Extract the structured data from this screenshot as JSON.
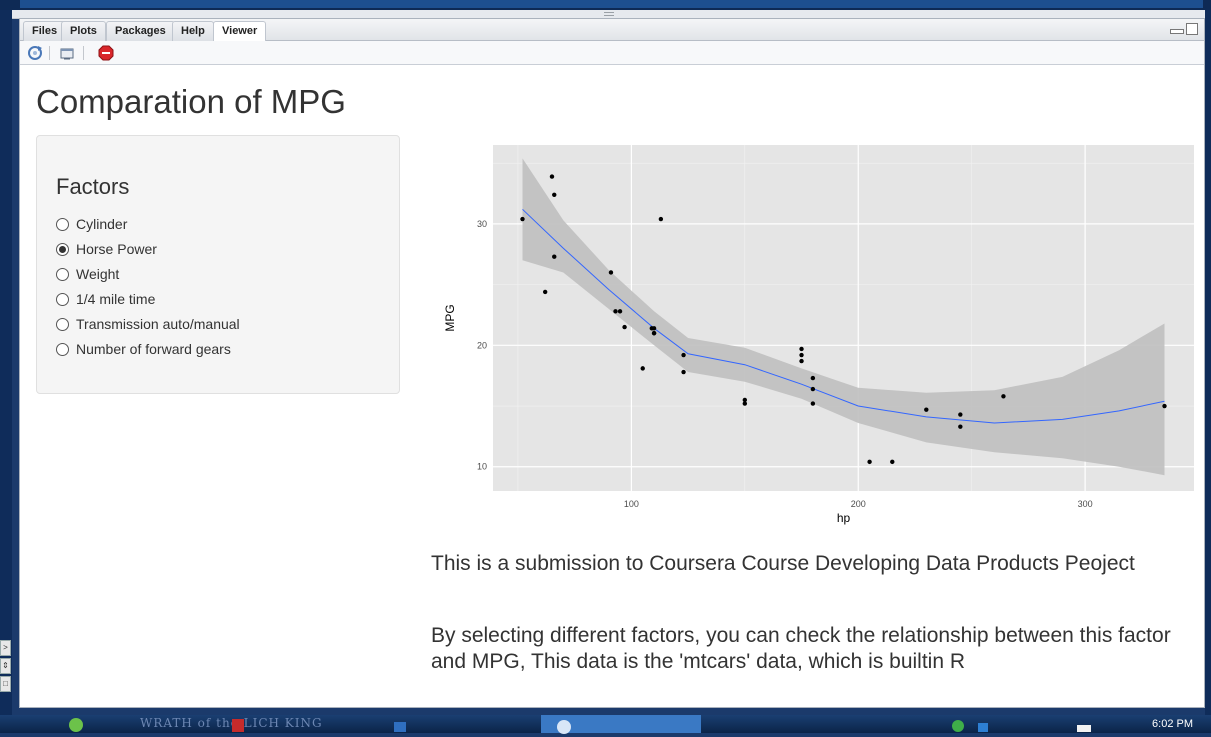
{
  "pane": {
    "tabs": [
      {
        "label": "Files"
      },
      {
        "label": "Plots"
      },
      {
        "label": "Packages"
      },
      {
        "label": "Help"
      },
      {
        "label": "Viewer"
      }
    ],
    "active_tab": "Viewer",
    "toolbar_icons": [
      "refresh-icon",
      "open-in-browser-icon",
      "stop-icon"
    ]
  },
  "app": {
    "title": "Comparation of MPG",
    "sidebar": {
      "title": "Factors",
      "options": [
        {
          "label": "Cylinder",
          "selected": false
        },
        {
          "label": "Horse Power",
          "selected": true
        },
        {
          "label": "Weight",
          "selected": false
        },
        {
          "label": "1/4 mile time",
          "selected": false
        },
        {
          "label": "Transmission auto/manual",
          "selected": false
        },
        {
          "label": "Number of forward gears",
          "selected": false
        }
      ]
    },
    "paragraphs": [
      "This is a submission to Coursera Course Developing Data Products Peoject",
      "By selecting different factors, you can check the relationship between this factor and MPG, This data is the 'mtcars' data, which is builtin R"
    ]
  },
  "chart_data": {
    "type": "scatter",
    "title": "",
    "xlabel": "hp",
    "ylabel": "MPG",
    "xlim": [
      39,
      348
    ],
    "ylim": [
      8.0,
      36.5
    ],
    "xticks": [
      100,
      200,
      300
    ],
    "yticks": [
      10,
      20,
      30
    ],
    "grid": true,
    "points": [
      {
        "x": 110,
        "y": 21.0
      },
      {
        "x": 110,
        "y": 21.0
      },
      {
        "x": 93,
        "y": 22.8
      },
      {
        "x": 110,
        "y": 21.4
      },
      {
        "x": 175,
        "y": 18.7
      },
      {
        "x": 105,
        "y": 18.1
      },
      {
        "x": 245,
        "y": 14.3
      },
      {
        "x": 62,
        "y": 24.4
      },
      {
        "x": 95,
        "y": 22.8
      },
      {
        "x": 123,
        "y": 19.2
      },
      {
        "x": 123,
        "y": 17.8
      },
      {
        "x": 180,
        "y": 16.4
      },
      {
        "x": 180,
        "y": 17.3
      },
      {
        "x": 180,
        "y": 15.2
      },
      {
        "x": 205,
        "y": 10.4
      },
      {
        "x": 215,
        "y": 10.4
      },
      {
        "x": 230,
        "y": 14.7
      },
      {
        "x": 66,
        "y": 32.4
      },
      {
        "x": 52,
        "y": 30.4
      },
      {
        "x": 65,
        "y": 33.9
      },
      {
        "x": 97,
        "y": 21.5
      },
      {
        "x": 150,
        "y": 15.5
      },
      {
        "x": 150,
        "y": 15.2
      },
      {
        "x": 245,
        "y": 13.3
      },
      {
        "x": 175,
        "y": 19.2
      },
      {
        "x": 66,
        "y": 27.3
      },
      {
        "x": 91,
        "y": 26.0
      },
      {
        "x": 113,
        "y": 30.4
      },
      {
        "x": 264,
        "y": 15.8
      },
      {
        "x": 175,
        "y": 19.7
      },
      {
        "x": 335,
        "y": 15.0
      },
      {
        "x": 109,
        "y": 21.4
      }
    ],
    "smooth": {
      "x": [
        52,
        70,
        90,
        110,
        125,
        150,
        175,
        200,
        230,
        260,
        290,
        315,
        335
      ],
      "y": [
        31.2,
        28.0,
        24.6,
        21.4,
        19.3,
        18.4,
        16.8,
        15.0,
        14.1,
        13.6,
        13.9,
        14.6,
        15.4
      ],
      "lower": [
        27.0,
        26.0,
        23.0,
        20.0,
        17.8,
        17.0,
        15.6,
        13.6,
        12.0,
        11.2,
        10.7,
        10.0,
        9.3
      ],
      "upper": [
        35.4,
        30.3,
        26.2,
        22.8,
        20.6,
        19.8,
        18.1,
        16.5,
        16.1,
        16.3,
        17.4,
        19.6,
        21.8
      ]
    },
    "colors": {
      "panel": "#e5e5e5",
      "grid": "#ffffff",
      "point": "#000000",
      "line": "#3366ff",
      "ribbon": "#bfbfbf"
    }
  },
  "taskbar": {
    "banner": "WRATH of the LICH KING",
    "clock": "6:02 PM"
  }
}
